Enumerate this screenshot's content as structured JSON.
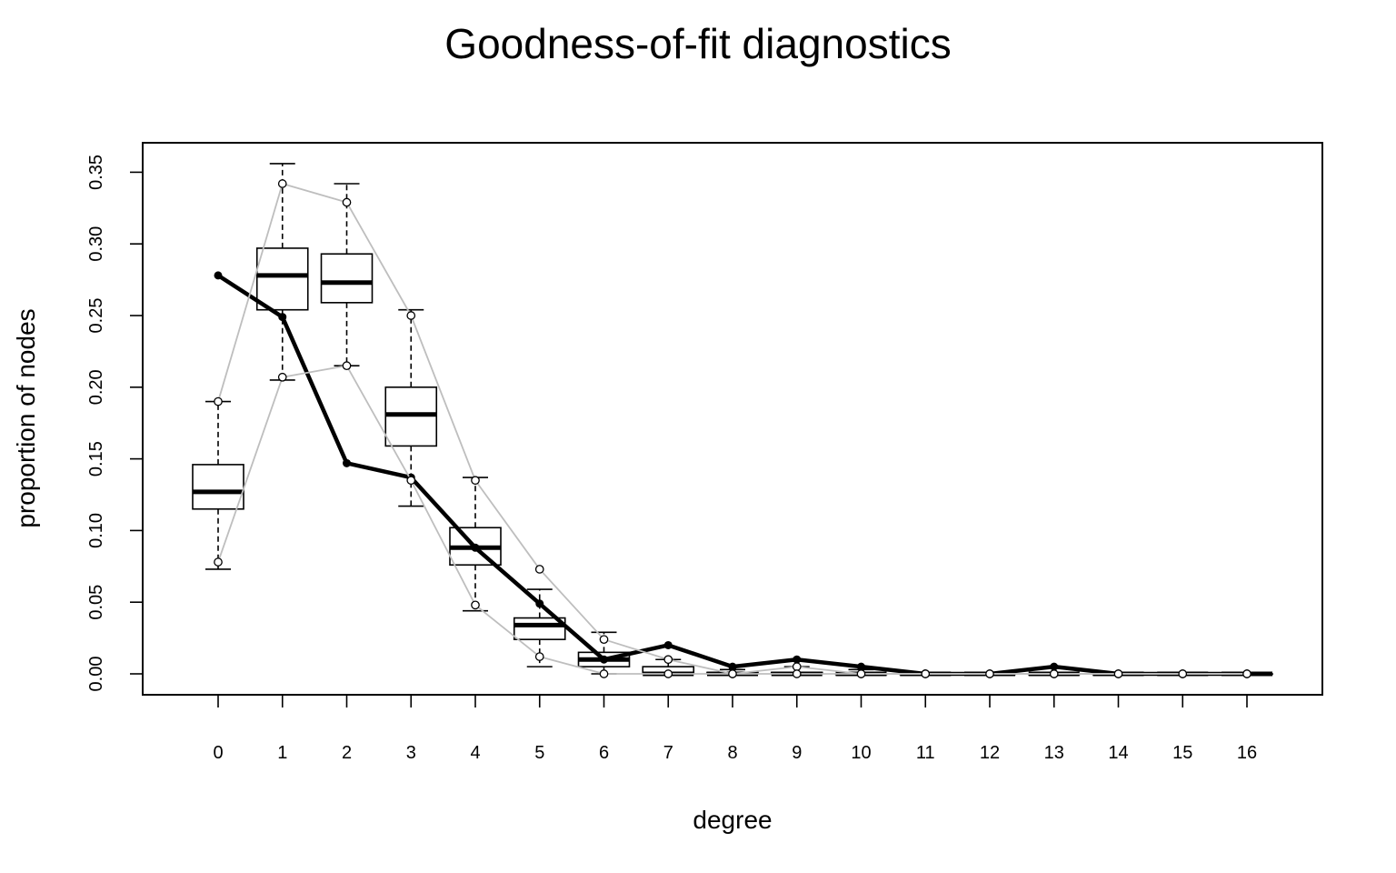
{
  "chart_data": {
    "type": "boxplot",
    "title": "Goodness-of-fit diagnostics",
    "xlabel": "degree",
    "ylabel": "proportion of nodes",
    "categories": [
      "0",
      "1",
      "2",
      "3",
      "4",
      "5",
      "6",
      "7",
      "8",
      "9",
      "10",
      "11",
      "12",
      "13",
      "14",
      "15",
      "16"
    ],
    "y_ticks": [
      "0.00",
      "0.05",
      "0.10",
      "0.15",
      "0.20",
      "0.25",
      "0.30",
      "0.35"
    ],
    "ylim": [
      -0.015,
      0.37
    ],
    "grid": false,
    "boxes": [
      {
        "degree": 0,
        "whisker_low": 0.073,
        "q1": 0.115,
        "median": 0.127,
        "q3": 0.146,
        "whisker_high": 0.19
      },
      {
        "degree": 1,
        "whisker_low": 0.205,
        "q1": 0.254,
        "median": 0.278,
        "q3": 0.297,
        "whisker_high": 0.356
      },
      {
        "degree": 2,
        "whisker_low": 0.215,
        "q1": 0.259,
        "median": 0.273,
        "q3": 0.293,
        "whisker_high": 0.342
      },
      {
        "degree": 3,
        "whisker_low": 0.117,
        "q1": 0.159,
        "median": 0.181,
        "q3": 0.2,
        "whisker_high": 0.254
      },
      {
        "degree": 4,
        "whisker_low": 0.044,
        "q1": 0.076,
        "median": 0.088,
        "q3": 0.102,
        "whisker_high": 0.137
      },
      {
        "degree": 5,
        "whisker_low": 0.005,
        "q1": 0.024,
        "median": 0.034,
        "q3": 0.039,
        "whisker_high": 0.059
      },
      {
        "degree": 6,
        "whisker_low": 0.0,
        "q1": 0.005,
        "median": 0.01,
        "q3": 0.015,
        "whisker_high": 0.029
      },
      {
        "degree": 7,
        "whisker_low": 0.0,
        "q1": 0.0,
        "median": 0.0,
        "q3": 0.005,
        "whisker_high": 0.01
      },
      {
        "degree": 8,
        "whisker_low": 0.0,
        "q1": 0.0,
        "median": 0.0,
        "q3": 0.001,
        "whisker_high": 0.003
      },
      {
        "degree": 9,
        "whisker_low": 0.0,
        "q1": 0.0,
        "median": 0.0,
        "q3": 0.001,
        "whisker_high": 0.005
      },
      {
        "degree": 10,
        "whisker_low": 0.0,
        "q1": 0.0,
        "median": 0.0,
        "q3": 0.0,
        "whisker_high": 0.003
      },
      {
        "degree": 11,
        "whisker_low": 0.0,
        "q1": 0.0,
        "median": 0.0,
        "q3": 0.0,
        "whisker_high": 0.0
      },
      {
        "degree": 12,
        "whisker_low": 0.0,
        "q1": 0.0,
        "median": 0.0,
        "q3": 0.0,
        "whisker_high": 0.0
      },
      {
        "degree": 13,
        "whisker_low": 0.0,
        "q1": 0.0,
        "median": 0.0,
        "q3": 0.0,
        "whisker_high": 0.0
      },
      {
        "degree": 14,
        "whisker_low": 0.0,
        "q1": 0.0,
        "median": 0.0,
        "q3": 0.0,
        "whisker_high": 0.0
      },
      {
        "degree": 15,
        "whisker_low": 0.0,
        "q1": 0.0,
        "median": 0.0,
        "q3": 0.0,
        "whisker_high": 0.0
      },
      {
        "degree": 16,
        "whisker_low": 0.0,
        "q1": 0.0,
        "median": 0.0,
        "q3": 0.0,
        "whisker_high": 0.0
      }
    ],
    "series": [
      {
        "role": "observed",
        "color": "#000000",
        "values": [
          0.278,
          0.249,
          0.147,
          0.137,
          0.088,
          0.049,
          0.01,
          0.02,
          0.005,
          0.01,
          0.005,
          0.0,
          0.0,
          0.005,
          0.0,
          0.0,
          0.0
        ]
      },
      {
        "role": "simulated-upper",
        "color": "#bebebe",
        "values": [
          0.19,
          0.342,
          0.329,
          0.25,
          0.135,
          0.073,
          0.024,
          0.01,
          0.0,
          0.005,
          0.0,
          0.0,
          0.0,
          0.0,
          0.0,
          0.0,
          0.0
        ]
      },
      {
        "role": "simulated-lower",
        "color": "#bebebe",
        "values": [
          0.078,
          0.207,
          0.215,
          0.135,
          0.048,
          0.012,
          0.0,
          0.0,
          0.0,
          0.0,
          0.0,
          0.0,
          0.0,
          0.0,
          0.0,
          0.0,
          0.0
        ]
      }
    ]
  }
}
